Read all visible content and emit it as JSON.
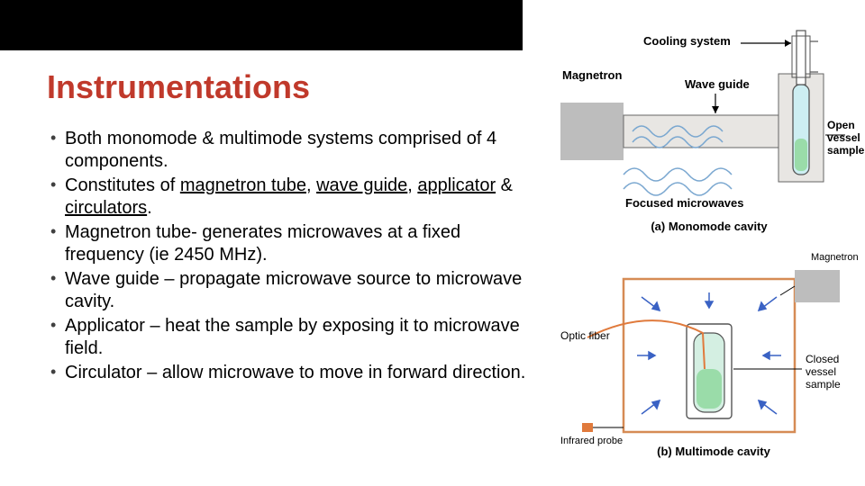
{
  "title": "Instrumentations",
  "bullets": [
    "Both monomode & multimode systems comprised of 4 components.",
    "Constitutes of __magnetron tube__, __wave guide__, __applicator__ & __circulators__.",
    "Magnetron tube- generates microwaves at a fixed frequency (ie 2450 MHz).",
    "Wave guide – propagate microwave source to microwave cavity.",
    "Applicator – heat the sample by exposing it to microwave field.",
    "Circulator – allow microwave to move in forward direction."
  ],
  "diagram_a": {
    "labels": {
      "cooling": "Cooling system",
      "magnetron": "Magnetron",
      "waveguide": "Wave guide",
      "sample": "Open\nvessel\nsample",
      "focused": "Focused microwaves",
      "caption": "(a) Monomode cavity"
    },
    "colors": {
      "block": "#bdbdbd",
      "guide_fill": "#e8e6e3",
      "vessel_outline": "#555555",
      "vessel_fill": "#cdeef2",
      "liquid": "#9adca9",
      "wave_color": "#7aa7d0"
    }
  },
  "diagram_b": {
    "labels": {
      "magnetron": "Magnetron",
      "optic": "Optic fiber",
      "infrared": "Infrared probe",
      "sample": "Closed\nvessel\nsample",
      "caption": "(b) Multimode cavity"
    },
    "colors": {
      "cavity_outline": "#d68b55",
      "cavity_fill": "#ffffff",
      "magnetron_block": "#bdbdbd",
      "vessel_outline": "#555555",
      "vessel_fill": "#d4efe2",
      "liquid": "#9adca9",
      "fiber": "#e07a3c",
      "probe": "#e07a3c",
      "arrow": "#3a62c4"
    }
  }
}
